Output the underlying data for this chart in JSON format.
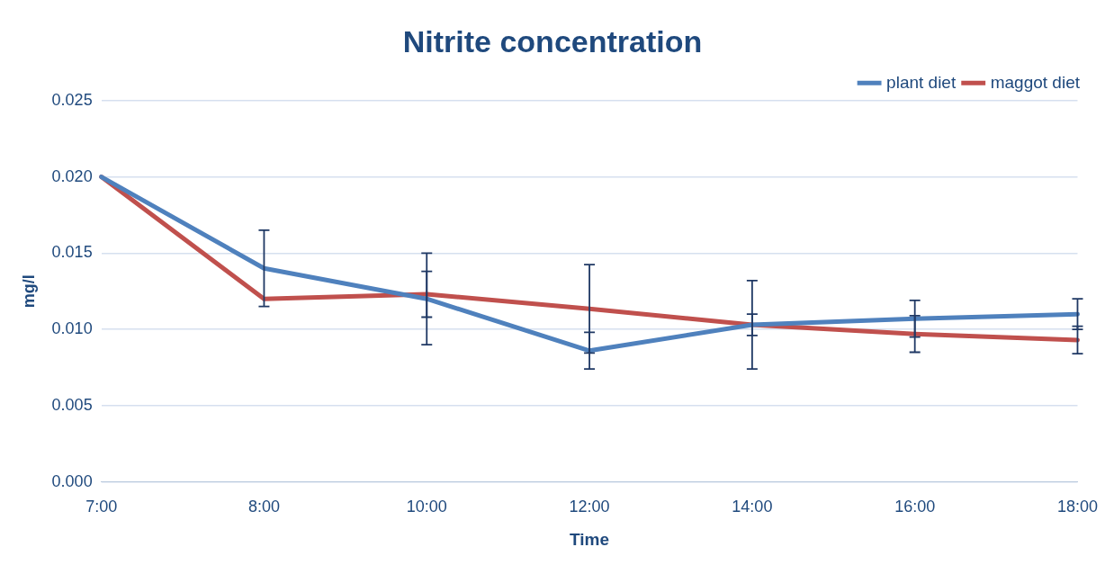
{
  "chart_data": {
    "type": "line",
    "title": "Nitrite concentration",
    "xlabel": "Time",
    "ylabel": "mg/l",
    "categories": [
      "7:00",
      "8:00",
      "10:00",
      "12:00",
      "14:00",
      "16:00",
      "18:00"
    ],
    "series": [
      {
        "name": "plant diet",
        "color": "#4f81bd",
        "values": [
          0.02,
          0.014,
          0.012,
          0.0086,
          0.0103,
          0.0107,
          0.011
        ],
        "errors": [
          null,
          0.0025,
          0.003,
          0.0012,
          0.0029,
          0.0012,
          0.001
        ]
      },
      {
        "name": "maggot diet",
        "color": "#c0504d",
        "values": [
          0.02,
          0.012,
          0.0123,
          0.01135,
          0.0103,
          0.0097,
          0.0093
        ],
        "errors": [
          null,
          null,
          0.0015,
          0.0029,
          0.0007,
          0.0012,
          0.0009
        ]
      }
    ],
    "ylim": [
      0,
      0.025
    ],
    "yticks": [
      {
        "value": 0,
        "label": "0.000"
      },
      {
        "value": 0.005,
        "label": "0.005"
      },
      {
        "value": 0.01,
        "label": "0.010"
      },
      {
        "value": 0.015,
        "label": "0.015"
      },
      {
        "value": 0.02,
        "label": "0.020"
      },
      {
        "value": 0.025,
        "label": "0.025"
      }
    ],
    "grid": "y",
    "legend": "top right",
    "marker": "none",
    "line_style": "solid"
  }
}
